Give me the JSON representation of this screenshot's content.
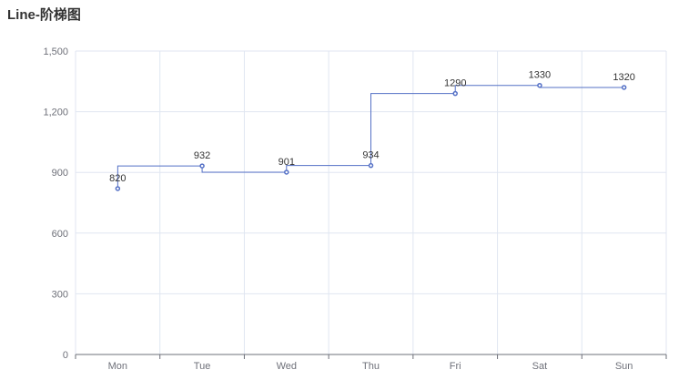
{
  "title": "Line-阶梯图",
  "chart_data": {
    "type": "line",
    "step": "start",
    "title": "Line-阶梯图",
    "categories": [
      "Mon",
      "Tue",
      "Wed",
      "Thu",
      "Fri",
      "Sat",
      "Sun"
    ],
    "series": [
      {
        "values": [
          820,
          932,
          901,
          934,
          1290,
          1330,
          1320
        ],
        "color": "#5470c6"
      }
    ],
    "ylim": [
      0,
      1500
    ],
    "yticks": [
      0,
      300,
      600,
      900,
      1200,
      1500
    ],
    "ytick_labels": [
      "0",
      "300",
      "600",
      "900",
      "1,200",
      "1,500"
    ],
    "grid": true,
    "show_data_labels": true
  }
}
